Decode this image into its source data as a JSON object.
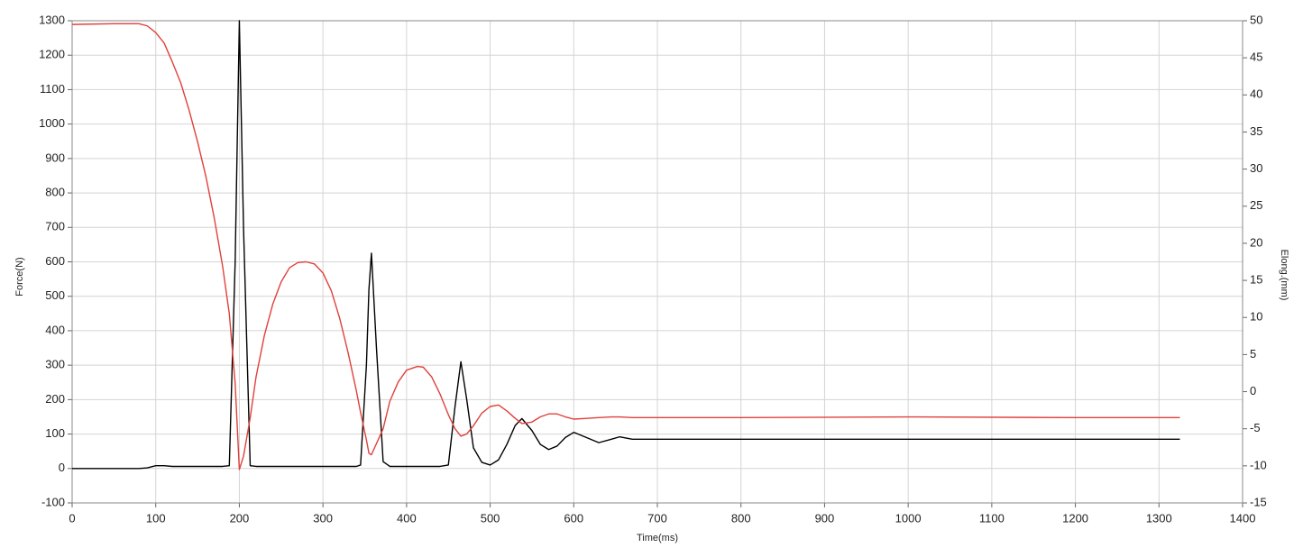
{
  "chart_data": {
    "type": "line",
    "xlabel": "Time(ms)",
    "ylabel": "Force(N)",
    "y2label": "Elong.(mm)",
    "x": [
      0,
      50,
      80,
      90,
      100,
      110,
      120,
      130,
      140,
      150,
      160,
      170,
      180,
      188,
      195,
      200,
      205,
      213,
      220,
      230,
      240,
      250,
      260,
      270,
      280,
      290,
      300,
      310,
      320,
      330,
      340,
      345,
      352,
      355,
      358,
      364,
      372,
      380,
      390,
      400,
      413,
      420,
      430,
      440,
      450,
      458,
      465,
      472,
      480,
      490,
      500,
      510,
      520,
      530,
      538,
      550,
      560,
      570,
      580,
      590,
      600,
      615,
      630,
      645,
      655,
      670,
      700,
      800,
      1000,
      1200,
      1325
    ],
    "series": [
      {
        "name": "Force",
        "color": "#000000",
        "values": [
          0,
          0,
          0,
          2,
          8,
          8,
          6,
          6,
          6,
          6,
          6,
          6,
          6,
          8,
          600,
          1300,
          700,
          8,
          6,
          6,
          6,
          6,
          6,
          6,
          6,
          6,
          6,
          6,
          6,
          6,
          6,
          10,
          300,
          520,
          625,
          350,
          20,
          6,
          6,
          6,
          6,
          6,
          6,
          6,
          10,
          180,
          310,
          200,
          60,
          18,
          10,
          25,
          70,
          125,
          145,
          110,
          70,
          55,
          65,
          90,
          105,
          90,
          75,
          85,
          92,
          85,
          85,
          85,
          85,
          85,
          85
        ]
      },
      {
        "name": "Elong",
        "color": "#e0403c",
        "axis": "y2",
        "values": [
          49.5,
          49.6,
          49.6,
          49.3,
          48.4,
          47.0,
          44.4,
          41.6,
          37.9,
          33.7,
          29.0,
          23.4,
          16.9,
          10.5,
          1.1,
          -10.5,
          -8.7,
          -3.5,
          2.0,
          7.6,
          11.8,
          14.8,
          16.7,
          17.4,
          17.5,
          17.2,
          16.0,
          13.6,
          9.9,
          5.3,
          0.1,
          -2.8,
          -6.5,
          -8.3,
          -8.5,
          -7.0,
          -5.0,
          -1.3,
          1.3,
          2.9,
          3.4,
          3.3,
          2.0,
          -0.3,
          -3.1,
          -5.0,
          -6.0,
          -5.7,
          -4.6,
          -2.9,
          -2.0,
          -1.8,
          -2.6,
          -3.6,
          -4.3,
          -4.1,
          -3.4,
          -3.0,
          -3.0,
          -3.4,
          -3.7,
          -3.6,
          -3.5,
          -3.4,
          -3.4,
          -3.5,
          -3.5,
          -3.5,
          -3.4,
          -3.5,
          -3.5
        ]
      }
    ],
    "xlim": [
      0,
      1400
    ],
    "xticks": [
      0,
      100,
      200,
      300,
      400,
      500,
      600,
      700,
      800,
      900,
      1000,
      1100,
      1200,
      1300,
      1400
    ],
    "ylim": [
      -100,
      1300
    ],
    "yticks": [
      -100,
      0,
      100,
      200,
      300,
      400,
      500,
      600,
      700,
      800,
      900,
      1000,
      1100,
      1200,
      1300
    ],
    "y2lim": [
      -15,
      50
    ],
    "y2ticks": [
      -15,
      -10,
      -5,
      0,
      5,
      10,
      15,
      20,
      25,
      30,
      35,
      40,
      45,
      50
    ],
    "grid": true
  }
}
